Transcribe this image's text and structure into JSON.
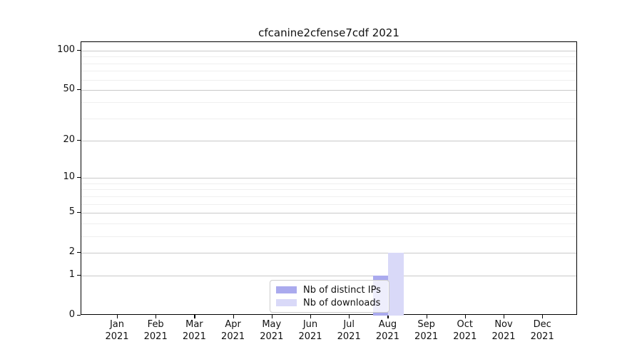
{
  "chart_data": {
    "type": "bar",
    "title": "cfcanine2cfense7cdf 2021",
    "categories": [
      "Jan",
      "Feb",
      "Mar",
      "Apr",
      "May",
      "Jun",
      "Jul",
      "Aug",
      "Sep",
      "Oct",
      "Nov",
      "Dec"
    ],
    "category_year": "2021",
    "series": [
      {
        "name": "Nb of distinct IPs",
        "color": "#aaaaee",
        "values": [
          0,
          0,
          0,
          0,
          0,
          0,
          0,
          1,
          0,
          0,
          0,
          0
        ]
      },
      {
        "name": "Nb of downloads",
        "color": "#d9d9f8",
        "values": [
          0,
          0,
          0,
          0,
          0,
          0,
          0,
          2,
          0,
          0,
          0,
          0
        ]
      }
    ],
    "xlabel": "",
    "ylabel": "",
    "yscale": "log1p",
    "y_ticks": [
      0,
      1,
      2,
      5,
      10,
      20,
      50,
      100
    ],
    "y_minor_ticks": [
      3,
      4,
      6,
      7,
      8,
      9,
      30,
      40,
      60,
      70,
      80,
      90
    ],
    "ylim": [
      0,
      116
    ],
    "grid": "on",
    "legend_position": "lower center",
    "colors": {
      "major_grid": "#c9c9c9",
      "minor_grid": "#efefef",
      "axis": "#000000",
      "background": "#ffffff"
    }
  }
}
